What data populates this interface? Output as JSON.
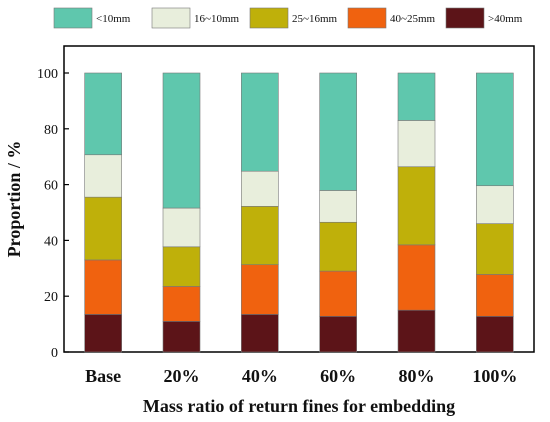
{
  "chart_data": {
    "type": "bar",
    "stacked": true,
    "categories": [
      "Base",
      "20%",
      "40%",
      "60%",
      "80%",
      "100%"
    ],
    "series": [
      {
        "name": ">40mm",
        "color": "#5c1418",
        "values": [
          13.5,
          11.0,
          13.5,
          12.8,
          15.0,
          12.8
        ]
      },
      {
        "name": "40~25mm",
        "color": "#f0620f",
        "values": [
          19.5,
          12.5,
          17.8,
          16.2,
          23.4,
          15.0
        ]
      },
      {
        "name": "25~16mm",
        "color": "#bfb00a",
        "values": [
          22.5,
          14.2,
          20.9,
          17.5,
          28.0,
          18.2
        ]
      },
      {
        "name": "16~10mm",
        "color": "#e8eedc",
        "values": [
          15.2,
          13.9,
          12.6,
          11.4,
          16.6,
          13.6
        ]
      },
      {
        "name": "<10mm",
        "color": "#5fc7ad",
        "values": [
          29.3,
          48.4,
          35.2,
          42.1,
          17.0,
          40.4
        ]
      }
    ],
    "legend_order": [
      "<10mm",
      "16~10mm",
      "25~16mm",
      "40~25mm",
      ">40mm"
    ],
    "xlabel": "Mass ratio of return fines for embedding",
    "ylabel": "Proportion / %",
    "ylim": [
      0,
      100
    ],
    "yticks": [
      0,
      20,
      40,
      60,
      80,
      100
    ],
    "legend_position": "top",
    "grid": false
  }
}
